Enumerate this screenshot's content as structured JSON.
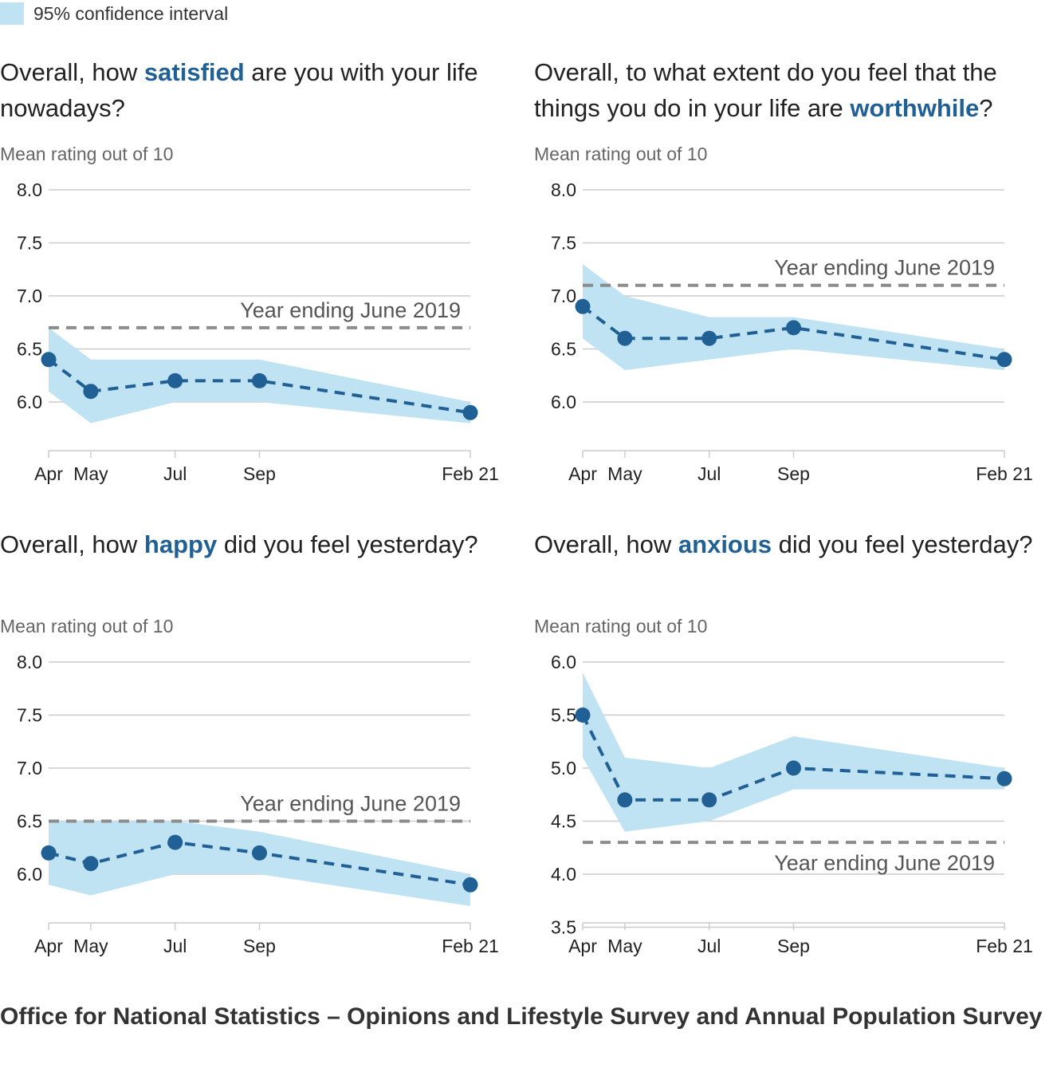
{
  "legend": {
    "label": "95% confidence interval",
    "color": "#bfe3f2"
  },
  "colors": {
    "line": "#206095",
    "band": "#bfe3f2",
    "reference": "#8c8c8c",
    "grid": "#cccccc"
  },
  "source": "Office for National Statistics – Opinions and Lifestyle Survey and Annual Population Survey",
  "chart_data": [
    {
      "type": "line",
      "title_before": "Overall, how ",
      "title_keyword": "satisfied",
      "title_after": " are you with your life nowadays?",
      "ylabel": "Mean rating out of 10",
      "ylim": [
        6.0,
        8.0
      ],
      "yticks": [
        "8.0",
        "7.5",
        "7.0",
        "6.5",
        "6.0"
      ],
      "x": [
        "Apr",
        "May",
        "Jul",
        "Sep",
        "Feb 21"
      ],
      "values": [
        6.4,
        6.1,
        6.2,
        6.2,
        5.9
      ],
      "ci_upper": [
        6.7,
        6.4,
        6.4,
        6.4,
        6.0
      ],
      "ci_lower": [
        6.1,
        5.8,
        6.0,
        6.0,
        5.8
      ],
      "reference": {
        "label": "Year ending June 2019",
        "value": 6.7,
        "label_position": "above"
      },
      "grid": true
    },
    {
      "type": "line",
      "title_before": "Overall, to what extent do you feel that the things you do in your life are ",
      "title_keyword": "worthwhile",
      "title_after": "?",
      "ylabel": "Mean rating out of 10",
      "ylim": [
        6.0,
        8.0
      ],
      "yticks": [
        "8.0",
        "7.5",
        "7.0",
        "6.5",
        "6.0"
      ],
      "x": [
        "Apr",
        "May",
        "Jul",
        "Sep",
        "Feb 21"
      ],
      "values": [
        6.9,
        6.6,
        6.6,
        6.7,
        6.4
      ],
      "ci_upper": [
        7.3,
        7.0,
        6.8,
        6.8,
        6.5
      ],
      "ci_lower": [
        6.6,
        6.3,
        6.4,
        6.5,
        6.3
      ],
      "reference": {
        "label": "Year ending June 2019",
        "value": 7.1,
        "label_position": "above"
      },
      "grid": true
    },
    {
      "type": "line",
      "title_before": "Overall, how ",
      "title_keyword": "happy",
      "title_after": " did you feel yesterday?",
      "ylabel": "Mean rating out of 10",
      "ylim": [
        6.0,
        8.0
      ],
      "yticks": [
        "8.0",
        "7.5",
        "7.0",
        "6.5",
        "6.0"
      ],
      "x": [
        "Apr",
        "May",
        "Jul",
        "Sep",
        "Feb 21"
      ],
      "values": [
        6.2,
        6.1,
        6.3,
        6.2,
        5.9
      ],
      "ci_upper": [
        6.5,
        6.5,
        6.5,
        6.4,
        6.0
      ],
      "ci_lower": [
        5.9,
        5.8,
        6.0,
        6.0,
        5.7
      ],
      "reference": {
        "label": "Year ending June 2019",
        "value": 6.5,
        "label_position": "above"
      },
      "grid": true
    },
    {
      "type": "line",
      "title_before": "Overall, how ",
      "title_keyword": "anxious",
      "title_after": " did you feel yesterday?",
      "ylabel": "Mean rating out of 10",
      "ylim": [
        3.5,
        6.0
      ],
      "yticks": [
        "6.0",
        "5.5",
        "5.0",
        "4.5",
        "4.0",
        "3.5"
      ],
      "x": [
        "Apr",
        "May",
        "Jul",
        "Sep",
        "Feb 21"
      ],
      "values": [
        5.5,
        4.7,
        4.7,
        5.0,
        4.9
      ],
      "ci_upper": [
        5.9,
        5.1,
        5.0,
        5.3,
        5.0
      ],
      "ci_lower": [
        5.1,
        4.4,
        4.5,
        4.8,
        4.8
      ],
      "reference": {
        "label": "Year ending June 2019",
        "value": 4.3,
        "label_position": "below"
      },
      "grid": true
    }
  ]
}
